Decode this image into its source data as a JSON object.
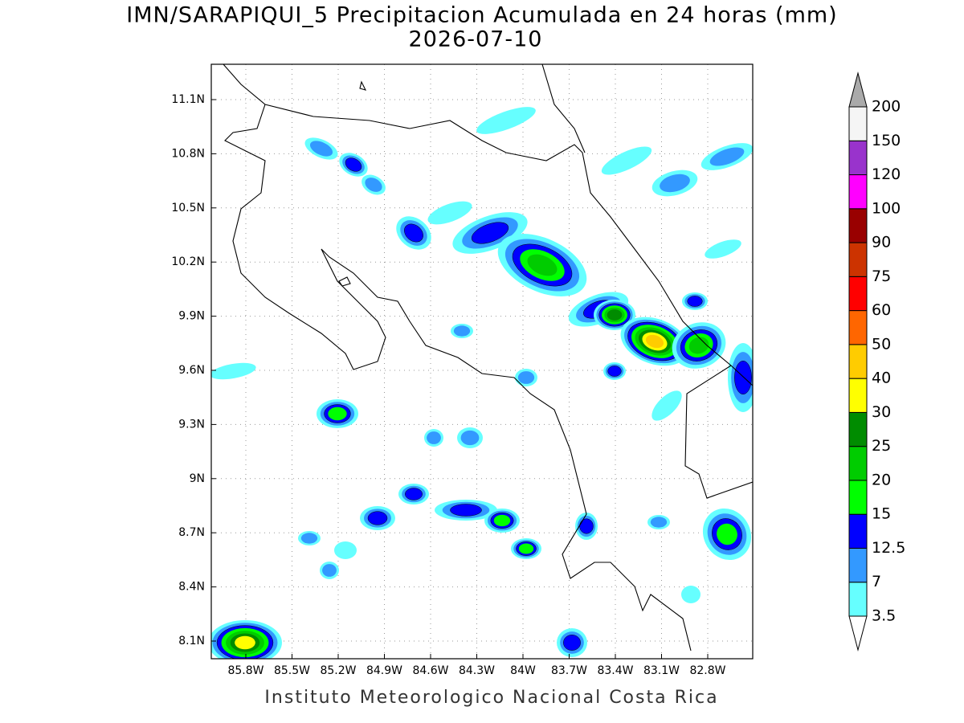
{
  "title": "IMN/SARAPIQUI_5 Precipitacion Acumulada en 24 horas (mm)",
  "subtitle": "2026-07-10",
  "footer": "Instituto Meteorologico Nacional Costa Rica",
  "map": {
    "lat_ticks": [
      "11.1N",
      "10.8N",
      "10.5N",
      "10.2N",
      "9.9N",
      "9.6N",
      "9.3N",
      "9N",
      "8.7N",
      "8.4N",
      "8.1N"
    ],
    "lon_ticks": [
      "85.8W",
      "85.5W",
      "85.2W",
      "84.9W",
      "84.6W",
      "84.3W",
      "84W",
      "83.7W",
      "83.4W",
      "83.1W",
      "82.8W"
    ]
  },
  "colorbar": {
    "labels": [
      "3.5",
      "7",
      "12.5",
      "15",
      "20",
      "25",
      "30",
      "40",
      "50",
      "60",
      "75",
      "90",
      "100",
      "120",
      "150",
      "200"
    ],
    "colors": [
      "#66ffff",
      "#3399ff",
      "#0000ff",
      "#00ff00",
      "#00cc00",
      "#008c00",
      "#ffff00",
      "#ffcc00",
      "#ff6600",
      "#ff0000",
      "#cc3300",
      "#990000",
      "#ff00ff",
      "#9933cc",
      "#f5f5f5"
    ],
    "over_color": "#aaaaaa",
    "under_color": "#ffffff"
  }
}
